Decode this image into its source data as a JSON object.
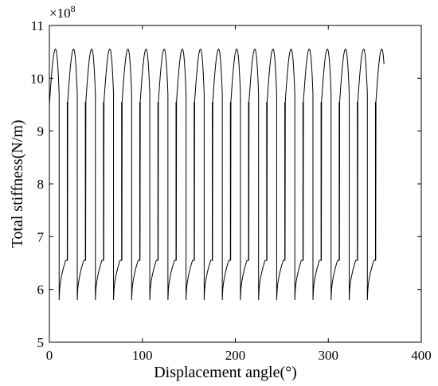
{
  "chart_data": {
    "type": "line",
    "title": "",
    "xlabel": "Displacement angle(°)",
    "ylabel": "Total stiffness(N/m)",
    "y_scale_label": "×10",
    "y_scale_exponent": "8",
    "xlim": [
      0,
      400
    ],
    "ylim": [
      5,
      11
    ],
    "x_ticks": [
      0,
      100,
      200,
      300,
      400
    ],
    "y_ticks": [
      5,
      6,
      7,
      8,
      9,
      10,
      11
    ],
    "x_tick_labels": [
      "0",
      "100",
      "200",
      "300",
      "400"
    ],
    "y_tick_labels": [
      "5",
      "6",
      "7",
      "8",
      "9",
      "10",
      "11"
    ],
    "grid": false,
    "legend": "none",
    "line_color": "#000000",
    "series": [
      {
        "period_deg": 19.5,
        "cycles": 19,
        "x_start": 0,
        "x_end": 360,
        "start_value": 9.5,
        "end_value": 9.7,
        "peak_value": 10.55,
        "trough_value": 5.8,
        "knee_value": 6.55,
        "peak_offset_deg": 6.5,
        "drop_offset_deg": 10.5,
        "knee_offset_deg": 17.5
      }
    ]
  }
}
